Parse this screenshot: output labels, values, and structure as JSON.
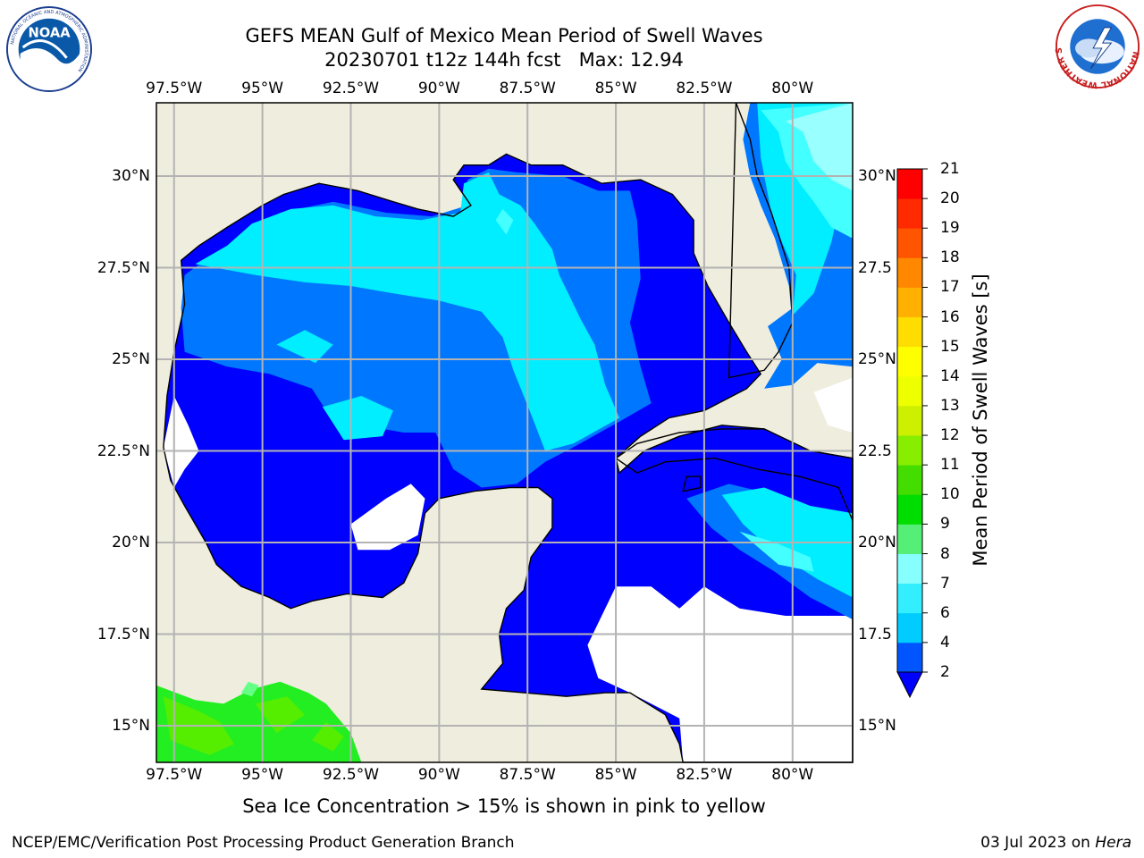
{
  "header": {
    "title_line1": "GEFS MEAN Gulf of Mexico Mean Period of Swell Waves",
    "title_line2": "20230701 t12z 144h fcst   Max: 12.94"
  },
  "logos": {
    "noaa": "NOAA",
    "noaa_ring": "NATIONAL OCEANIC AND ATMOSPHERIC ADMINISTRATION",
    "noaa_ring_bottom": "U.S. DEPARTMENT OF COMMERCE",
    "nws_ring": "NATIONAL WEATHER SERVICE"
  },
  "axes": {
    "lon_labels": [
      "97.5°W",
      "95°W",
      "92.5°W",
      "90°W",
      "87.5°W",
      "85°W",
      "82.5°W",
      "80°W"
    ],
    "lat_labels_left": [
      "30°N",
      "27.5°N",
      "25°N",
      "22.5°N",
      "20°N",
      "17.5°N",
      "15°N"
    ],
    "lat_labels_right": [
      "30°N",
      "27.5",
      "25°N",
      "22.5",
      "20°N",
      "17.5",
      "15°N"
    ],
    "lon_values": [
      -97.5,
      -95,
      -92.5,
      -90,
      -87.5,
      -85,
      -82.5,
      -80
    ],
    "lat_values": [
      30,
      27.5,
      25,
      22.5,
      20,
      17.5,
      15
    ],
    "lon_range": [
      -98,
      -78.3
    ],
    "lat_range": [
      14,
      32
    ],
    "grid": true
  },
  "colorbar": {
    "title": "Mean Period of Swell Waves [s]",
    "levels": [
      "2",
      "4",
      "6",
      "7",
      "8",
      "9",
      "10",
      "11",
      "12",
      "13",
      "14",
      "15",
      "16",
      "17",
      "18",
      "19",
      "20",
      "21"
    ],
    "colors": [
      "#0055ff",
      "#00ccff",
      "#33eeff",
      "#88ffff",
      "#55ee77",
      "#00dd00",
      "#44dd00",
      "#88ee00",
      "#ccf000",
      "#eeff00",
      "#ffff00",
      "#ffdd00",
      "#ffb000",
      "#ff8800",
      "#ff5500",
      "#ff2a00",
      "#ff0000"
    ],
    "under_color": "#0000ff",
    "extend": "min"
  },
  "palette": {
    "land": "#efedde",
    "missing": "#ffffff",
    "level_2_4": "#0000ff",
    "level_4_6": "#0077ff",
    "level_6_7": "#00eeff",
    "level_7_8": "#44ffff",
    "level_8_9": "#99ffff",
    "level_9_10": "#66ff88",
    "level_10_11": "#22ee22",
    "level_11_12": "#55ee00"
  },
  "footer": {
    "note": "Sea Ice Concentration > 15% is shown in pink to yellow",
    "credit": "NCEP/EMC/Verification Post Processing Product Generation Branch",
    "date": "03 Jul 2023 on ",
    "host": "Hera"
  }
}
